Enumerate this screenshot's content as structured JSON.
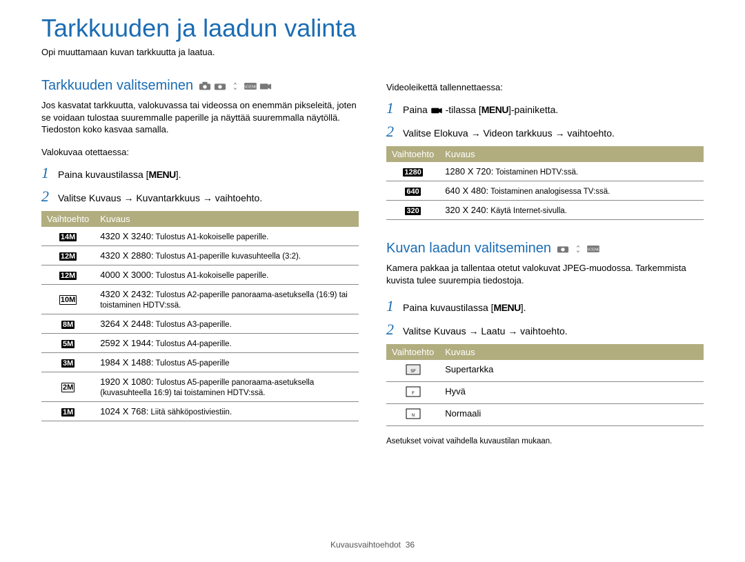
{
  "page": {
    "title": "Tarkkuuden ja laadun valinta",
    "subtitle": "Opi muuttamaan kuvan tarkkuutta ja laatua.",
    "footer_section": "Kuvausvaihtoehdot",
    "footer_page": "36"
  },
  "colors": {
    "heading": "#1a6cb3",
    "table_header_bg": "#b1ad7f",
    "table_header_fg": "#ffffff",
    "text": "#000000",
    "icon_gray": "#777777"
  },
  "left": {
    "section_title": "Tarkkuuden valitseminen",
    "intro": "Jos kasvatat tarkkuutta, valokuvassa tai videossa on enemmän pikseleitä, joten se voidaan tulostaa suuremmalle paperille ja näyttää suuremmalla näytöllä. Tiedoston koko kasvaa samalla.",
    "photo_label": "Valokuvaa otettaessa:",
    "step1": "Paina kuvaustilassa [",
    "step1_kw": "MENU",
    "step1_end": "].",
    "step2": "Valitse Kuvaus → Kuvantarkkuus → vaihtoehto.",
    "table_headers": {
      "opt": "Vaihtoehto",
      "desc": "Kuvaus"
    },
    "rows": [
      {
        "icon": "14M",
        "desc_prefix": "4320 X 3240:",
        "desc": " Tulostus A1-kokoiselle paperille."
      },
      {
        "icon": "12M",
        "desc_prefix": "4320 X 2880:",
        "desc": " Tulostus A1-paperille kuvasuhteella (3:2)."
      },
      {
        "icon": "12M",
        "desc_prefix": "4000 X 3000:",
        "desc": " Tulostus A1-kokoiselle paperille."
      },
      {
        "icon": "10M",
        "desc_prefix": "4320 X 2432:",
        "desc": " Tulostus A2-paperille panoraama-asetuksella (16:9) tai toistaminen HDTV:ssä."
      },
      {
        "icon": "8M",
        "desc_prefix": "3264 X 2448:",
        "desc": " Tulostus A3-paperille."
      },
      {
        "icon": "5M",
        "desc_prefix": "2592 X 1944:",
        "desc": " Tulostus A4-paperille."
      },
      {
        "icon": "3M",
        "desc_prefix": "1984 X 1488:",
        "desc": " Tulostus A5-paperille"
      },
      {
        "icon": "2M",
        "desc_prefix": "1920 X 1080:",
        "desc": " Tulostus A5-paperille panoraama-asetuksella (kuvasuhteella 16:9) tai toistaminen HDTV:ssä."
      },
      {
        "icon": "1M",
        "desc_prefix": "1024 X 768:",
        "desc": " Liitä sähköpostiviestiin."
      }
    ]
  },
  "right": {
    "video_label": "Videoleikettä tallennettaessa:",
    "step1_a": "Paina ",
    "step1_b": "-tilassa [",
    "step1_kw": "MENU",
    "step1_c": "]-painiketta.",
    "step2": "Valitse Elokuva → Videon tarkkuus → vaihtoehto.",
    "table_headers": {
      "opt": "Vaihtoehto",
      "desc": "Kuvaus"
    },
    "video_rows": [
      {
        "icon": "1280",
        "desc_prefix": "1280 X 720:",
        "desc": " Toistaminen HDTV:ssä."
      },
      {
        "icon": "640",
        "desc_prefix": "640 X 480:",
        "desc": " Toistaminen analogisessa TV:ssä."
      },
      {
        "icon": "320",
        "desc_prefix": "320 X 240:",
        "desc": " Käytä Internet-sivulla."
      }
    ],
    "quality_title": "Kuvan laadun valitseminen",
    "quality_intro": "Kamera pakkaa ja tallentaa otetut valokuvat JPEG-muodossa. Tarkemmista kuvista tulee suurempia tiedostoja.",
    "q_step1": "Paina kuvaustilassa [",
    "q_step1_kw": "MENU",
    "q_step1_end": "].",
    "q_step2": "Valitse Kuvaus → Laatu → vaihtoehto.",
    "quality_rows": [
      {
        "label": "Supertarkka"
      },
      {
        "label": "Hyvä"
      },
      {
        "label": "Normaali"
      }
    ],
    "quality_footnote": "Asetukset voivat vaihdella kuvaustilan mukaan."
  }
}
